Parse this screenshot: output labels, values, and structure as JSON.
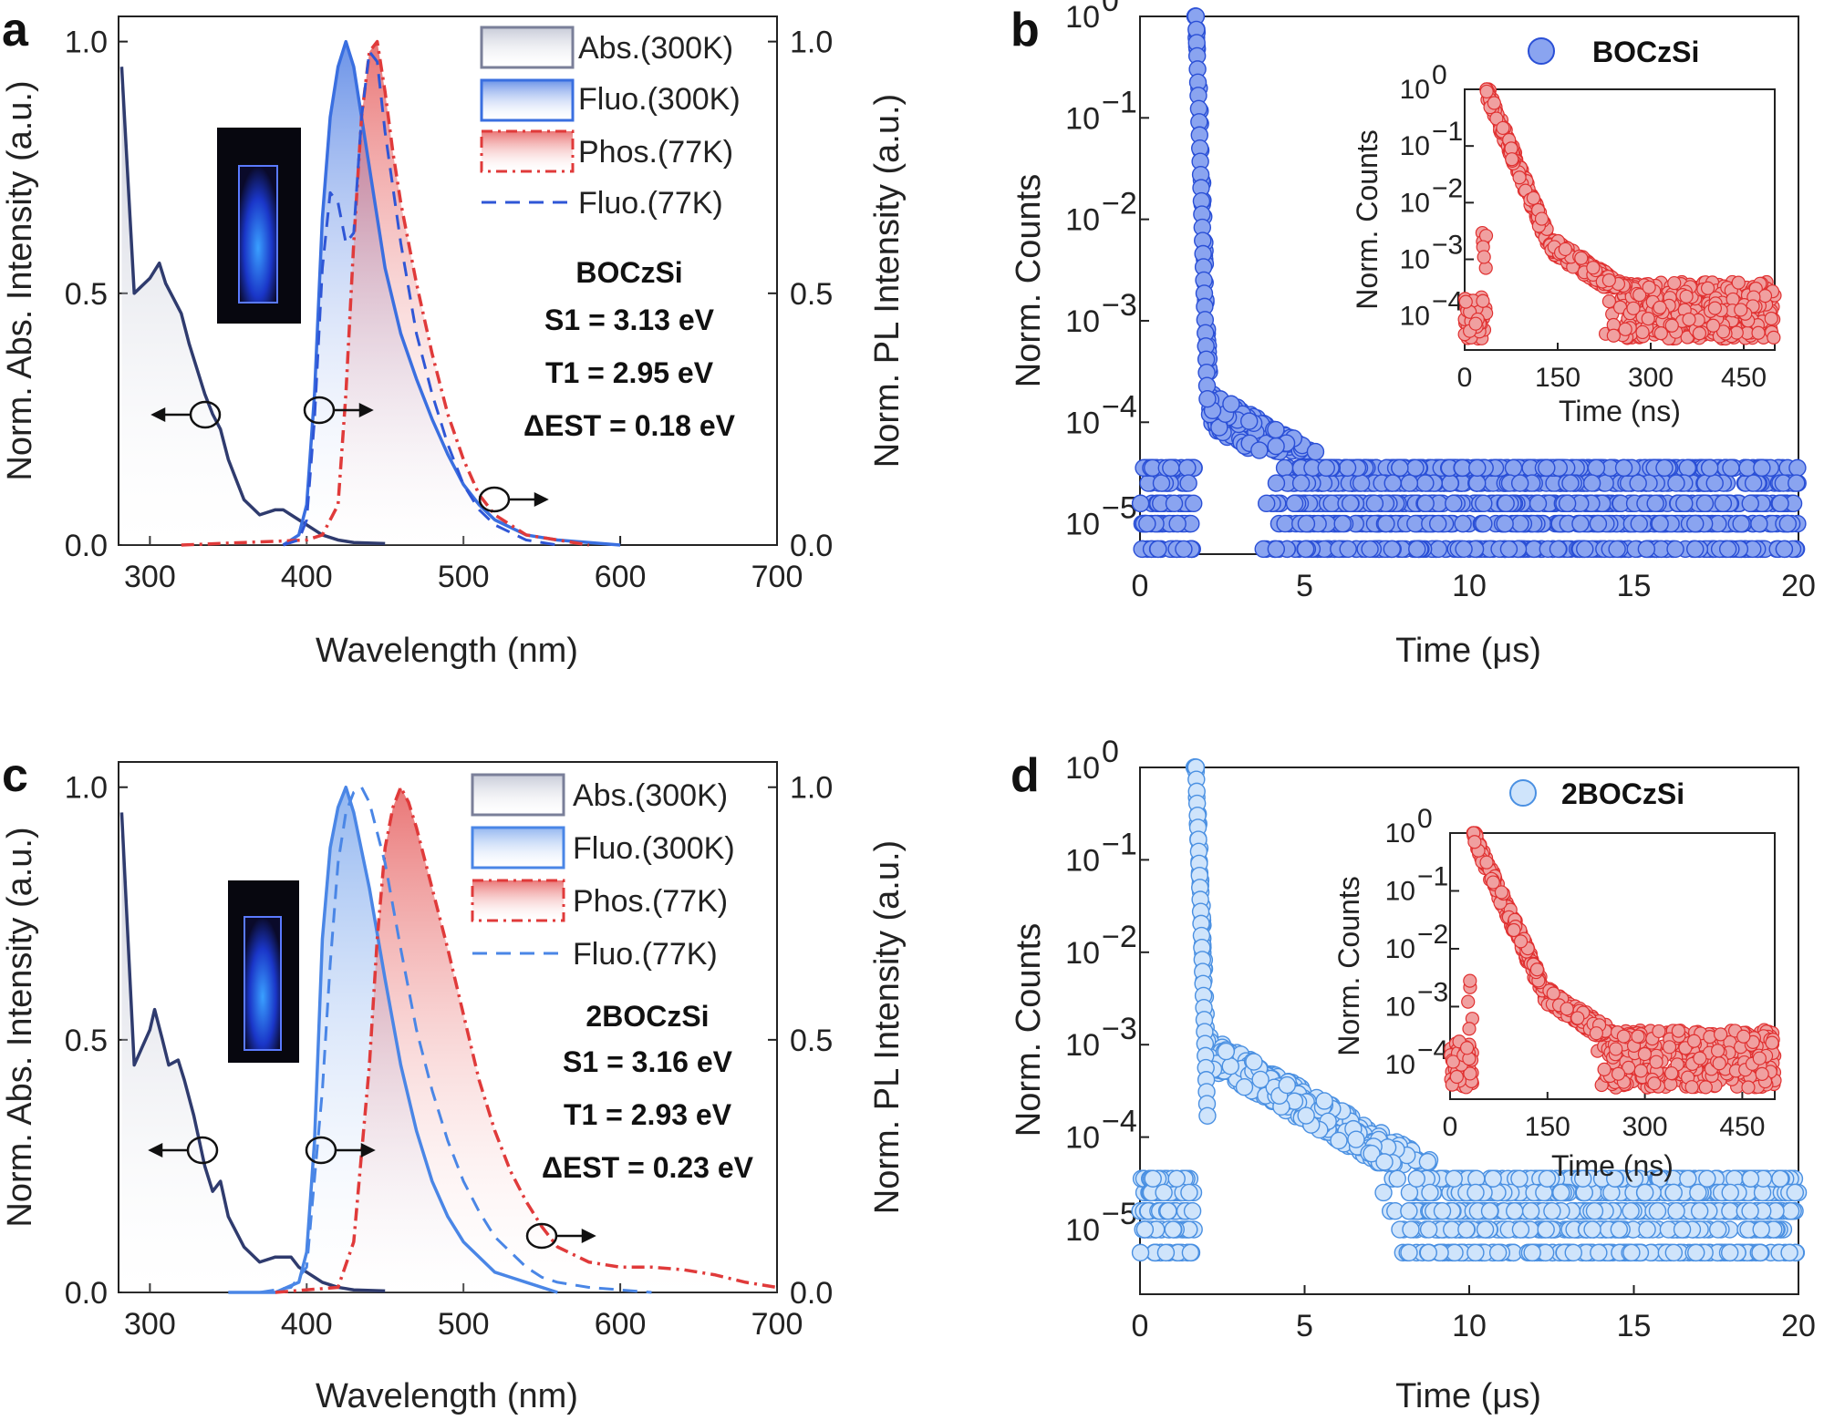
{
  "chart_data": [
    {
      "panel": "a",
      "type": "line",
      "xlabel": "Wavelength (nm)",
      "ylabel_left": "Norm. Abs. Intensity (a.u.)",
      "ylabel_right": "Norm. PL Intensity (a.u.)",
      "xlim": [
        280,
        700
      ],
      "ylim": [
        0,
        1.05
      ],
      "xticks": [
        "300",
        "400",
        "500",
        "600",
        "700"
      ],
      "yticks_left": [
        "0.0",
        "0.5",
        "1.0"
      ],
      "yticks_right": [
        "0.0",
        "0.5",
        "1.0"
      ],
      "legend": [
        "Abs.(300K)",
        "Fluo.(300K)",
        "Phos.(77K)",
        "Fluo.(77K)"
      ],
      "annotations": {
        "compound": "BOCzSi",
        "s1": "S1 = 3.13 eV",
        "t1": "T1 = 2.95 eV",
        "dest": "ΔEST = 0.18 eV"
      },
      "series": [
        {
          "name": "Abs.(300K)",
          "color": "#2f3b6e",
          "x": [
            282,
            290,
            300,
            306,
            310,
            315,
            320,
            325,
            330,
            335,
            340,
            345,
            350,
            360,
            370,
            380,
            385,
            390,
            395,
            400,
            405,
            410,
            420,
            430,
            450
          ],
          "y": [
            0.95,
            0.5,
            0.53,
            0.56,
            0.52,
            0.49,
            0.46,
            0.4,
            0.35,
            0.3,
            0.26,
            0.23,
            0.17,
            0.09,
            0.06,
            0.07,
            0.07,
            0.06,
            0.05,
            0.04,
            0.03,
            0.02,
            0.01,
            0.005,
            0.003
          ]
        },
        {
          "name": "Fluo.(300K)",
          "color": "#3a6fe0",
          "x": [
            385,
            395,
            400,
            405,
            410,
            415,
            420,
            425,
            430,
            440,
            450,
            460,
            470,
            480,
            490,
            500,
            510,
            520,
            540,
            560,
            580,
            600
          ],
          "y": [
            0.0,
            0.02,
            0.08,
            0.3,
            0.65,
            0.85,
            0.95,
            1.0,
            0.95,
            0.75,
            0.55,
            0.42,
            0.33,
            0.25,
            0.18,
            0.12,
            0.08,
            0.05,
            0.02,
            0.01,
            0.005,
            0.0
          ]
        },
        {
          "name": "Phos.(77K)",
          "color": "#e03a3a",
          "x": [
            320,
            360,
            400,
            410,
            420,
            425,
            430,
            435,
            440,
            445,
            450,
            455,
            460,
            470,
            480,
            490,
            500,
            510,
            520,
            530,
            540,
            560,
            580
          ],
          "y": [
            0.0,
            0.005,
            0.01,
            0.02,
            0.08,
            0.3,
            0.6,
            0.85,
            0.98,
            1.0,
            0.9,
            0.78,
            0.68,
            0.52,
            0.38,
            0.26,
            0.17,
            0.1,
            0.06,
            0.04,
            0.02,
            0.01,
            0.0
          ]
        },
        {
          "name": "Fluo.(77K)",
          "color": "#2f56d6",
          "x": [
            385,
            395,
            400,
            405,
            410,
            415,
            420,
            425,
            430,
            435,
            440,
            445,
            450,
            460,
            470,
            480,
            490,
            500,
            510,
            520,
            540,
            560
          ],
          "y": [
            0.0,
            0.01,
            0.05,
            0.25,
            0.55,
            0.7,
            0.68,
            0.6,
            0.62,
            0.85,
            0.98,
            0.96,
            0.82,
            0.6,
            0.42,
            0.3,
            0.2,
            0.12,
            0.07,
            0.04,
            0.01,
            0.0
          ]
        }
      ]
    },
    {
      "panel": "b",
      "type": "scatter",
      "xlabel": "Time (μs)",
      "ylabel": "Norm. Counts",
      "xlim": [
        0,
        20
      ],
      "ylim_log": [
        -5.3,
        0
      ],
      "xticks": [
        "0",
        "5",
        "10",
        "15",
        "20"
      ],
      "legend": "BOCzSi",
      "decay_peak_x": 1.7,
      "color_fill": "#8aa4f0",
      "color_edge": "#2a4fd6",
      "inset": {
        "xlabel": "Time (ns)",
        "ylabel": "Norm. Counts",
        "xticks": [
          "0",
          "150",
          "300",
          "450"
        ],
        "xlim": [
          0,
          500
        ],
        "peak_x": 35,
        "tau_ns": 28,
        "color_fill": "#f0a0a0",
        "color_edge": "#e03030"
      }
    },
    {
      "panel": "c",
      "type": "line",
      "xlabel": "Wavelength (nm)",
      "ylabel_left": "Norm. Abs. Intensity (a.u.)",
      "ylabel_right": "Norm. PL Intensity (a.u.)",
      "xlim": [
        280,
        700
      ],
      "ylim": [
        0,
        1.05
      ],
      "xticks": [
        "300",
        "400",
        "500",
        "600",
        "700"
      ],
      "yticks_left": [
        "0.0",
        "0.5",
        "1.0"
      ],
      "yticks_right": [
        "0.0",
        "0.5",
        "1.0"
      ],
      "legend": [
        "Abs.(300K)",
        "Fluo.(300K)",
        "Phos.(77K)",
        "Fluo.(77K)"
      ],
      "annotations": {
        "compound": "2BOCzSi",
        "s1": "S1 = 3.16 eV",
        "t1": "T1 = 2.93 eV",
        "dest": "ΔEST = 0.23 eV"
      },
      "series": [
        {
          "name": "Abs.(300K)",
          "color": "#2f3b6e",
          "x": [
            282,
            290,
            300,
            303,
            308,
            312,
            318,
            322,
            328,
            335,
            340,
            345,
            350,
            360,
            370,
            380,
            390,
            395,
            400,
            405,
            410,
            420,
            430,
            450
          ],
          "y": [
            0.95,
            0.45,
            0.52,
            0.56,
            0.5,
            0.45,
            0.46,
            0.42,
            0.35,
            0.25,
            0.2,
            0.22,
            0.15,
            0.09,
            0.06,
            0.07,
            0.07,
            0.05,
            0.04,
            0.03,
            0.02,
            0.01,
            0.005,
            0.003
          ]
        },
        {
          "name": "Fluo.(300K)",
          "color": "#4a86e6",
          "x": [
            350,
            380,
            395,
            400,
            405,
            410,
            415,
            420,
            425,
            430,
            440,
            450,
            460,
            470,
            480,
            490,
            500,
            510,
            520,
            530,
            540,
            560
          ],
          "y": [
            0.0,
            0.0,
            0.02,
            0.08,
            0.3,
            0.7,
            0.88,
            0.96,
            1.0,
            0.95,
            0.8,
            0.62,
            0.45,
            0.32,
            0.22,
            0.15,
            0.1,
            0.07,
            0.04,
            0.03,
            0.02,
            0.0
          ]
        },
        {
          "name": "Phos.(77K)",
          "color": "#e03a3a",
          "x": [
            380,
            420,
            430,
            440,
            445,
            450,
            455,
            460,
            465,
            470,
            480,
            490,
            500,
            510,
            520,
            530,
            540,
            550,
            560,
            580,
            600,
            620,
            640,
            660,
            680,
            700
          ],
          "y": [
            0.0,
            0.01,
            0.1,
            0.45,
            0.7,
            0.88,
            0.96,
            1.0,
            0.97,
            0.92,
            0.8,
            0.68,
            0.55,
            0.42,
            0.32,
            0.24,
            0.18,
            0.13,
            0.09,
            0.06,
            0.05,
            0.05,
            0.045,
            0.035,
            0.02,
            0.01
          ]
        },
        {
          "name": "Fluo.(77K)",
          "color": "#4a86e6",
          "x": [
            370,
            390,
            400,
            410,
            415,
            420,
            425,
            430,
            435,
            440,
            450,
            460,
            470,
            480,
            490,
            500,
            510,
            520,
            530,
            540,
            550,
            560,
            580,
            600,
            620
          ],
          "y": [
            0.0,
            0.01,
            0.05,
            0.4,
            0.65,
            0.85,
            0.95,
            0.99,
            1.0,
            0.97,
            0.85,
            0.68,
            0.52,
            0.4,
            0.3,
            0.22,
            0.16,
            0.11,
            0.08,
            0.05,
            0.03,
            0.02,
            0.01,
            0.005,
            0.0
          ]
        }
      ]
    },
    {
      "panel": "d",
      "type": "scatter",
      "xlabel": "Time (μs)",
      "ylabel": "Norm.  Counts",
      "xlim": [
        0,
        20
      ],
      "ylim_log": [
        -5.7,
        0
      ],
      "xticks": [
        "0",
        "5",
        "10",
        "15",
        "20"
      ],
      "legend": "2BOCzSi",
      "decay_peak_x": 1.7,
      "color_fill": "#cfe4fb",
      "color_edge": "#4a90e2",
      "inset": {
        "xlabel": "Time (ns)",
        "ylabel": "Norm. Counts",
        "xticks": [
          "0",
          "150",
          "300",
          "450"
        ],
        "xlim": [
          0,
          500
        ],
        "peak_x": 35,
        "tau_ns": 30,
        "color_fill": "#f0a0a0",
        "color_edge": "#e03030"
      }
    }
  ],
  "panels": {
    "a": {
      "letter": "a"
    },
    "b": {
      "letter": "b"
    },
    "c": {
      "letter": "c"
    },
    "d": {
      "letter": "d"
    }
  }
}
